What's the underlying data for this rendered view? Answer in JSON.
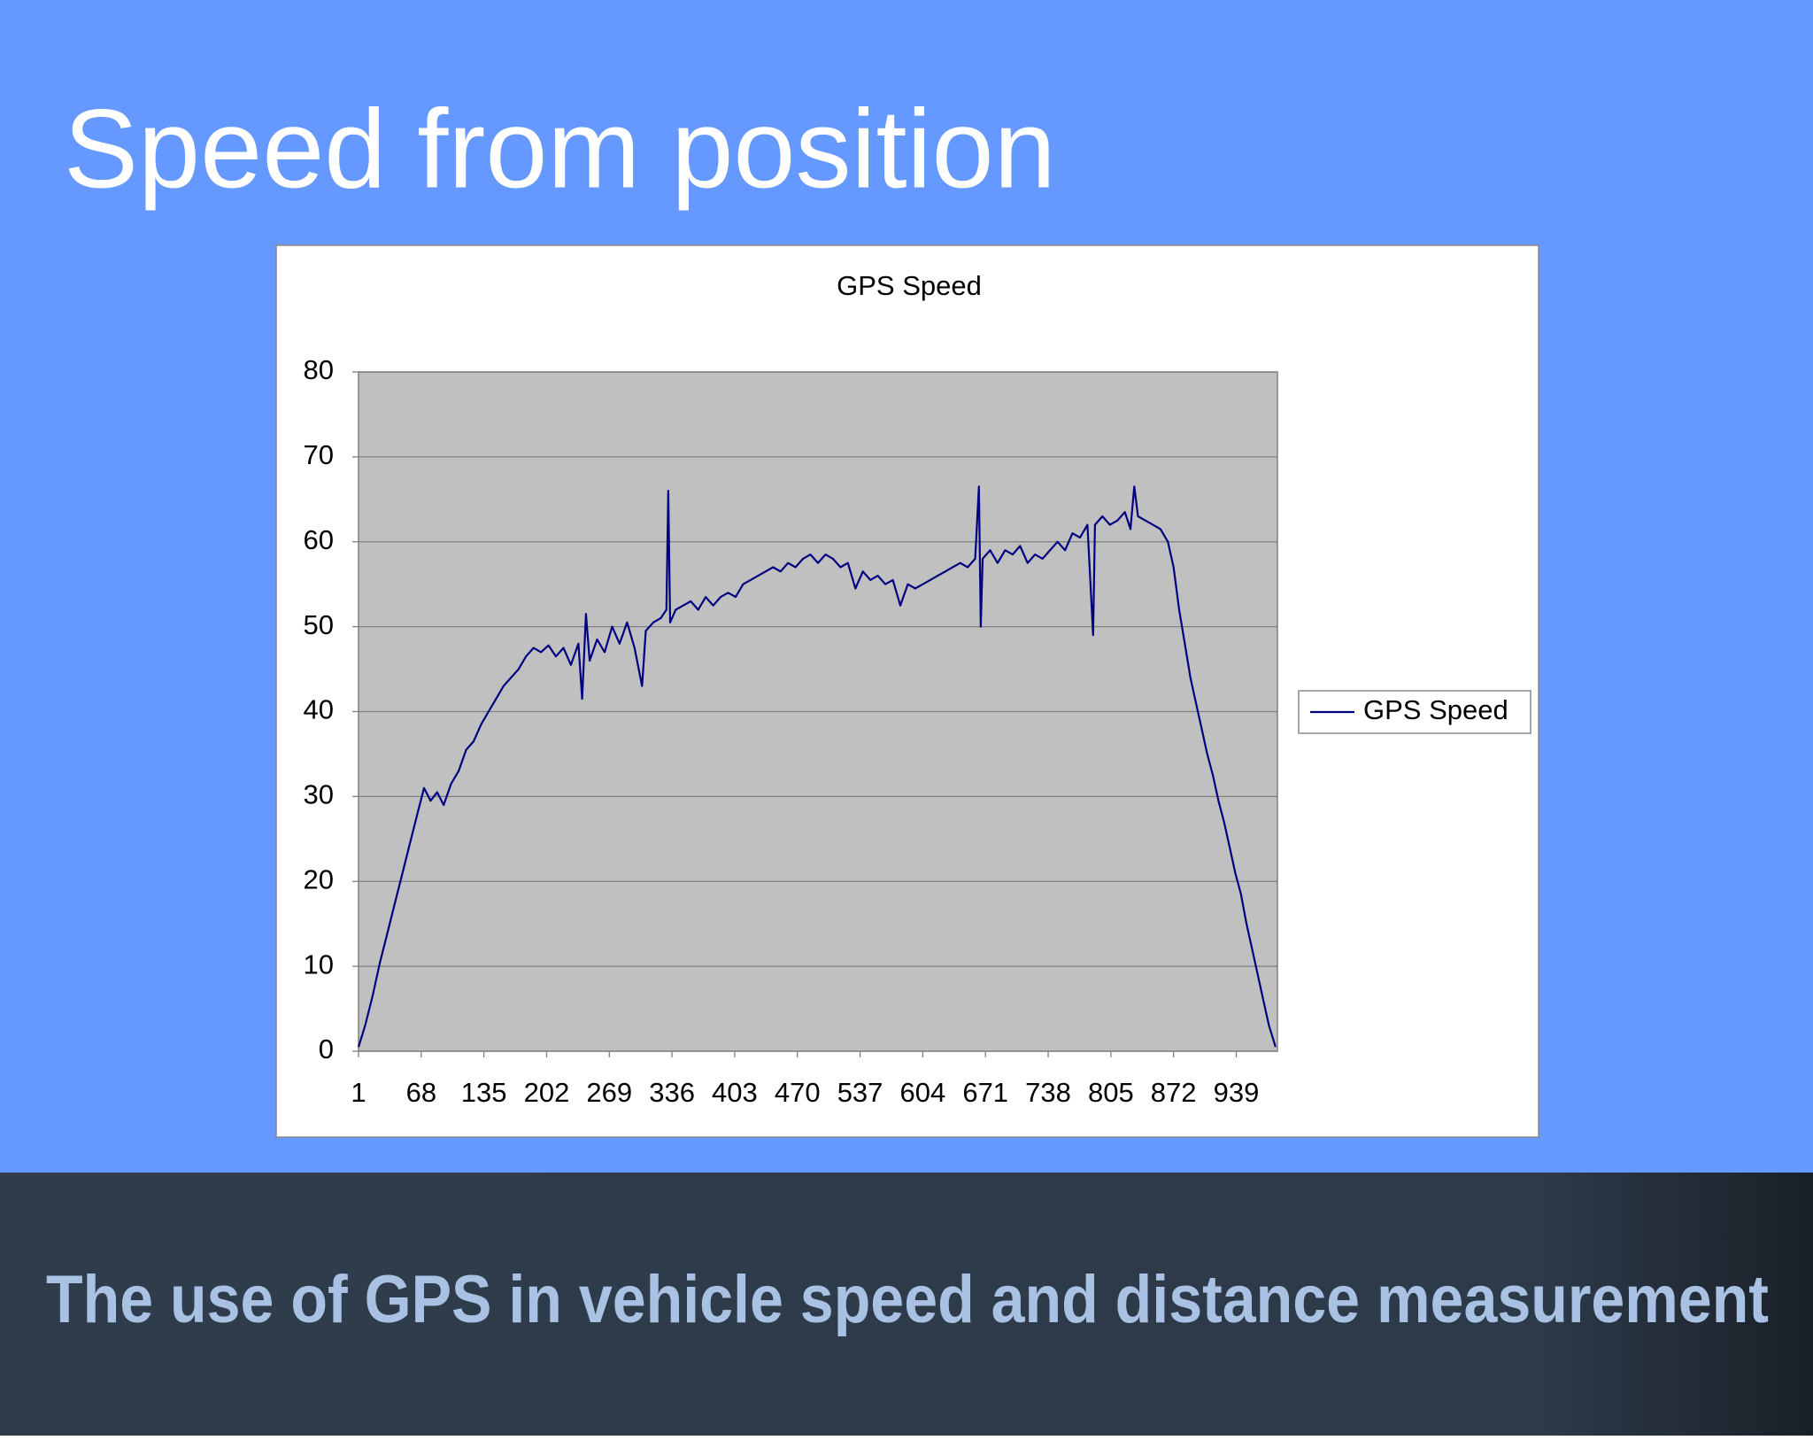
{
  "title": "Speed from position",
  "footer": "The use of GPS in vehicle speed and distance measurement",
  "chart_data": {
    "type": "line",
    "title": "GPS Speed",
    "x": [
      1,
      8,
      16,
      24,
      32,
      40,
      48,
      56,
      64,
      71,
      78,
      85,
      92,
      100,
      108,
      116,
      124,
      132,
      140,
      148,
      156,
      164,
      172,
      180,
      188,
      196,
      204,
      212,
      220,
      228,
      236,
      240,
      244,
      248,
      256,
      264,
      272,
      280,
      288,
      296,
      304,
      308,
      316,
      324,
      330,
      332,
      334,
      340,
      348,
      356,
      364,
      372,
      380,
      388,
      396,
      404,
      412,
      420,
      428,
      436,
      444,
      452,
      460,
      468,
      476,
      484,
      492,
      500,
      508,
      516,
      524,
      532,
      540,
      548,
      556,
      564,
      572,
      580,
      588,
      596,
      604,
      612,
      620,
      628,
      636,
      644,
      652,
      660,
      664,
      666,
      668,
      676,
      684,
      692,
      700,
      708,
      716,
      724,
      732,
      740,
      748,
      756,
      764,
      772,
      780,
      786,
      788,
      796,
      804,
      812,
      820,
      826,
      830,
      834,
      842,
      850,
      858,
      866,
      872,
      878,
      884,
      890,
      896,
      902,
      908,
      914,
      920,
      926,
      932,
      938,
      944,
      950,
      956,
      962,
      968,
      974,
      981
    ],
    "series": [
      {
        "name": "GPS Speed",
        "color": "#000080",
        "values": [
          0.5,
          3,
          6.5,
          10.5,
          14,
          17.5,
          21,
          24.5,
          28,
          31,
          29.5,
          30.5,
          29,
          31.5,
          33,
          35.5,
          36.5,
          38.5,
          40,
          41.5,
          43,
          44,
          45,
          46.5,
          47.5,
          47,
          47.8,
          46.5,
          47.5,
          45.5,
          48,
          41.5,
          51.5,
          46,
          48.5,
          47,
          50,
          48,
          50.5,
          47.5,
          43,
          49.5,
          50.5,
          51,
          52,
          66,
          50.5,
          52,
          52.5,
          53,
          52,
          53.5,
          52.5,
          53.5,
          54,
          53.5,
          55,
          55.5,
          56,
          56.5,
          57,
          56.5,
          57.5,
          57,
          58,
          58.5,
          57.5,
          58.5,
          58,
          57,
          57.5,
          54.5,
          56.5,
          55.5,
          56,
          55,
          55.5,
          52.5,
          55,
          54.5,
          55,
          55.5,
          56,
          56.5,
          57,
          57.5,
          57,
          58,
          66.5,
          50,
          58,
          59,
          57.5,
          59,
          58.5,
          59.5,
          57.5,
          58.5,
          58,
          59,
          60,
          59,
          61,
          60.5,
          62,
          49,
          62,
          63,
          62,
          62.5,
          63.5,
          61.5,
          66.5,
          63,
          62.5,
          62,
          61.5,
          60,
          57,
          52,
          48,
          44,
          41,
          38,
          35,
          32.5,
          29.5,
          27,
          24,
          21,
          18.5,
          15,
          12,
          9,
          6,
          3,
          0.5
        ]
      }
    ],
    "xlim": [
      1,
      983
    ],
    "xticks": [
      1,
      68,
      135,
      202,
      269,
      336,
      403,
      470,
      537,
      604,
      671,
      738,
      805,
      872,
      939
    ],
    "ylim": [
      0,
      80
    ],
    "yticks": [
      0,
      10,
      20,
      30,
      40,
      50,
      60,
      70,
      80
    ],
    "grid": true,
    "legend": "right"
  }
}
